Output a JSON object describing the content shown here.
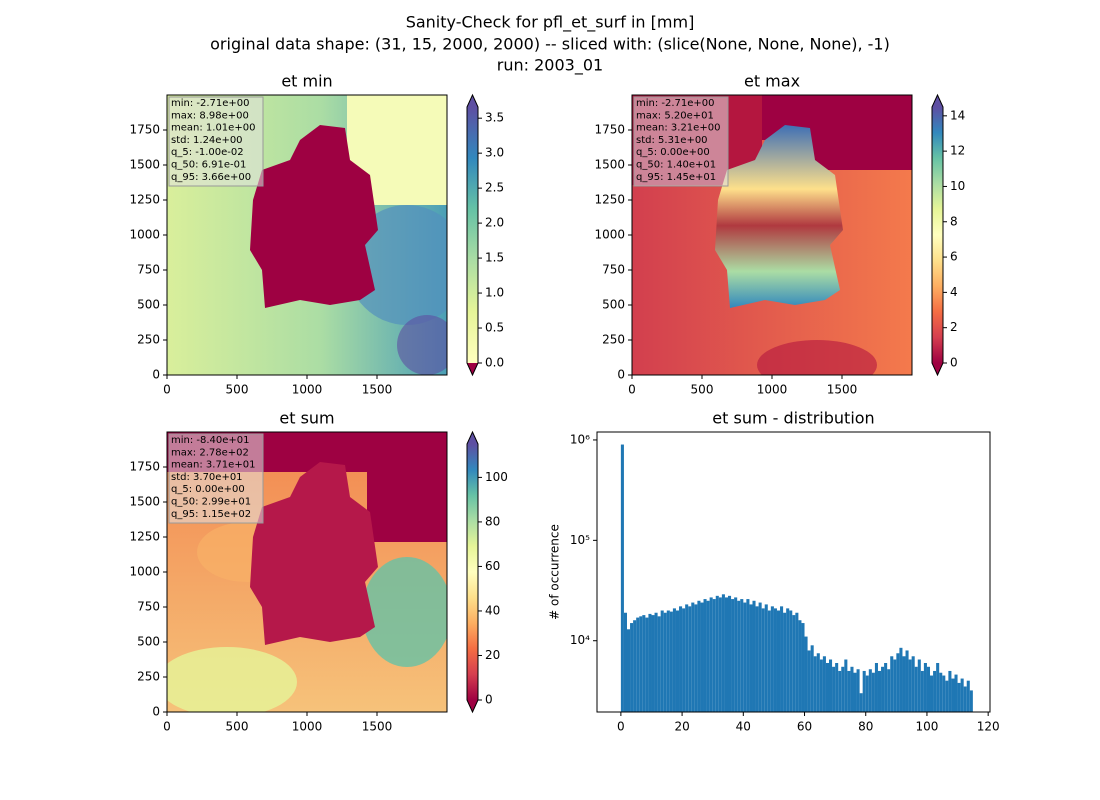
{
  "figure_title": [
    "Sanity-Check for pfl_et_surf in [mm]",
    "original data shape: (31, 15, 2000, 2000) -- sliced with: (slice(None, None, None), -1)",
    "run: 2003_01"
  ],
  "chart_data": [
    {
      "type": "heatmap",
      "title": "et min",
      "xlim": [
        0,
        2000
      ],
      "ylim": [
        0,
        2000
      ],
      "xticks": [
        0,
        500,
        1000,
        1500
      ],
      "yticks": [
        0,
        250,
        500,
        750,
        1000,
        1250,
        1500,
        1750
      ],
      "colorbar": {
        "lim": [
          0,
          3.66
        ],
        "ticks": [
          {
            "value": 0,
            "label": "0.0"
          },
          0.5,
          {
            "value": 1,
            "label": "1.0"
          },
          1.5,
          {
            "value": 2,
            "label": "2.0"
          },
          2.5,
          {
            "value": 3,
            "label": "3.0"
          },
          3.5
        ]
      },
      "stats": [
        "min: -2.71e+00",
        "max: 8.98e+00",
        "mean: 1.01e+00",
        "std: 1.24e+00",
        "q_5: -1.00e-02",
        "q_50: 6.91e-01",
        "q_95: 3.66e+00"
      ]
    },
    {
      "type": "heatmap",
      "title": "et max",
      "xlim": [
        0,
        2000
      ],
      "ylim": [
        0,
        2000
      ],
      "xticks": [
        0,
        500,
        1000,
        1500
      ],
      "yticks": [
        0,
        250,
        500,
        750,
        1000,
        1250,
        1500,
        1750
      ],
      "colorbar": {
        "lim": [
          0,
          14.5
        ],
        "ticks": [
          0,
          2,
          4,
          6,
          8,
          10,
          12,
          14
        ]
      },
      "stats": [
        "min: -2.71e+00",
        "max: 5.20e+01",
        "mean: 3.21e+00",
        "std: 5.31e+00",
        "q_5: 0.00e+00",
        "q_50: 1.40e+01",
        "q_95: 1.45e+01"
      ]
    },
    {
      "type": "heatmap",
      "title": "et sum",
      "xlim": [
        0,
        2000
      ],
      "ylim": [
        0,
        2000
      ],
      "xticks": [
        0,
        500,
        1000,
        1500
      ],
      "yticks": [
        0,
        250,
        500,
        750,
        1000,
        1250,
        1500,
        1750
      ],
      "colorbar": {
        "lim": [
          0,
          115
        ],
        "ticks": [
          0,
          20,
          40,
          60,
          80,
          100
        ]
      },
      "stats": [
        "min: -8.40e+01",
        "max: 2.78e+02",
        "mean: 3.71e+01",
        "std: 3.70e+01",
        "q_5: 0.00e+00",
        "q_50: 2.99e+01",
        "q_95: 1.15e+02"
      ]
    },
    {
      "type": "histogram",
      "title": "et sum - distribution",
      "ylabel": "# of occurrence",
      "color": "#1f77b4",
      "yscale": "log",
      "xlim": [
        -7.8,
        120.6
      ],
      "xticks": [
        0,
        20,
        40,
        60,
        80,
        100,
        120
      ],
      "ylim": [
        1950,
        1200000
      ],
      "yticks": [
        {
          "value": 10000,
          "label": "10⁴"
        },
        {
          "value": 100000,
          "label": "10⁵"
        },
        {
          "value": 1000000,
          "label": "10⁶"
        }
      ],
      "bins": [
        0,
        1,
        2,
        3,
        4,
        5,
        6,
        7,
        8,
        9,
        10,
        11,
        12,
        13,
        14,
        15,
        16,
        17,
        18,
        19,
        20,
        21,
        22,
        23,
        24,
        25,
        26,
        27,
        28,
        29,
        30,
        31,
        32,
        33,
        34,
        35,
        36,
        37,
        38,
        39,
        40,
        41,
        42,
        43,
        44,
        45,
        46,
        47,
        48,
        49,
        50,
        51,
        52,
        53,
        54,
        55,
        56,
        57,
        58,
        59,
        60,
        61,
        62,
        63,
        64,
        65,
        66,
        67,
        68,
        69,
        70,
        71,
        72,
        73,
        74,
        75,
        76,
        77,
        78,
        79,
        80,
        81,
        82,
        83,
        84,
        85,
        86,
        87,
        88,
        89,
        90,
        91,
        92,
        93,
        94,
        95,
        96,
        97,
        98,
        99,
        100,
        101,
        102,
        103,
        104,
        105,
        106,
        107,
        108,
        109,
        110,
        111,
        112,
        113,
        114,
        115
      ],
      "counts": [
        900000,
        19000,
        13000,
        15000,
        16000,
        17000,
        17500,
        18000,
        17000,
        18500,
        18000,
        19000,
        17500,
        20000,
        19000,
        20000,
        19500,
        21000,
        20000,
        22000,
        21000,
        23000,
        22000,
        24000,
        23000,
        25000,
        24000,
        26000,
        25000,
        27000,
        26000,
        28000,
        27000,
        29000,
        27000,
        28000,
        26000,
        27000,
        25000,
        26000,
        24000,
        26000,
        23000,
        25000,
        22000,
        24000,
        21000,
        23000,
        20000,
        22000,
        21000,
        20000,
        22000,
        19000,
        21000,
        20000,
        18000,
        19000,
        16000,
        15000,
        11000,
        8000,
        9000,
        7000,
        7500,
        6500,
        7000,
        6000,
        6500,
        5500,
        6000,
        5000,
        5500,
        6500,
        5000,
        5500,
        4800,
        5200,
        3000,
        5000,
        4500,
        5200,
        4800,
        6000,
        5000,
        5500,
        6000,
        5200,
        7000,
        6500,
        7500,
        8500,
        7000,
        8000,
        6500,
        7000,
        5500,
        6500,
        5000,
        6000,
        5500,
        4500,
        5000,
        6000,
        4800,
        4500,
        4000,
        5000,
        4200,
        4600,
        3800,
        4200,
        3500,
        4000,
        3200
      ]
    }
  ]
}
